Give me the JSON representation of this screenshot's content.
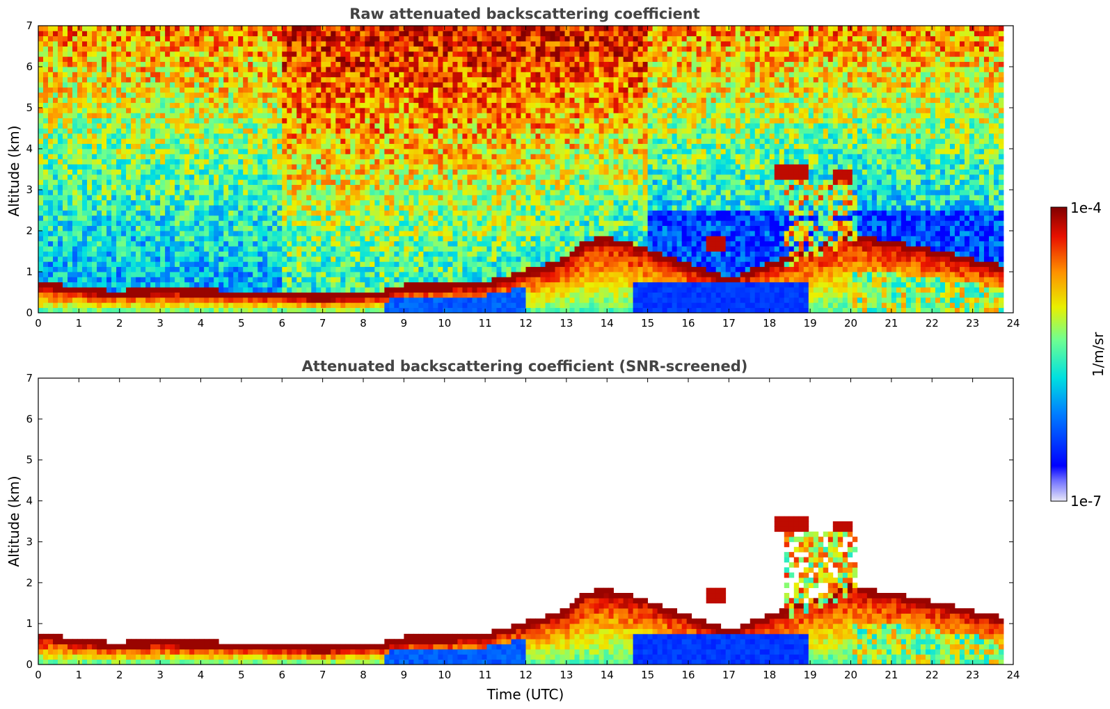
{
  "chart_data": [
    {
      "type": "heatmap",
      "title": "Raw attenuated backscattering coefficient",
      "xlabel": "",
      "ylabel": "Altitude (km)",
      "xlim": [
        0,
        24
      ],
      "ylim": [
        0,
        7
      ],
      "xticks": [
        "0",
        "1",
        "2",
        "3",
        "4",
        "5",
        "6",
        "7",
        "8",
        "9",
        "10",
        "11",
        "12",
        "13",
        "14",
        "15",
        "16",
        "17",
        "18",
        "19",
        "20",
        "21",
        "22",
        "23",
        "24"
      ],
      "yticks": [
        "0",
        "1",
        "2",
        "3",
        "4",
        "5",
        "6",
        "7"
      ],
      "layer_height_km": [
        [
          0,
          0.6
        ],
        [
          1.8,
          0.4
        ],
        [
          3,
          0.45
        ],
        [
          5,
          0.4
        ],
        [
          7,
          0.3
        ],
        [
          8.5,
          0.4
        ],
        [
          9,
          0.55
        ],
        [
          10,
          0.55
        ],
        [
          11,
          0.6
        ],
        [
          12,
          0.9
        ],
        [
          13,
          1.2
        ],
        [
          13.5,
          1.65
        ],
        [
          14,
          1.7
        ],
        [
          14.5,
          1.6
        ],
        [
          17,
          0.7
        ],
        [
          20,
          1.8
        ],
        [
          22,
          1.4
        ],
        [
          23.8,
          1.0
        ]
      ],
      "elevated_layers": [
        {
          "t_start": 18.1,
          "t_end": 18.9,
          "alt_km": 3.4
        },
        {
          "t_start": 19.6,
          "t_end": 20.0,
          "alt_km": 3.3
        },
        {
          "t_start": 16.5,
          "t_end": 16.9,
          "alt_km": 1.7
        }
      ],
      "grid": false
    },
    {
      "type": "heatmap",
      "title": "Attenuated backscattering coefficient (SNR-screened)",
      "xlabel": "Time (UTC)",
      "ylabel": "Altitude (km)",
      "xlim": [
        0,
        24
      ],
      "ylim": [
        0,
        7
      ],
      "xticks": [
        "0",
        "1",
        "2",
        "3",
        "4",
        "5",
        "6",
        "7",
        "8",
        "9",
        "10",
        "11",
        "12",
        "13",
        "14",
        "15",
        "16",
        "17",
        "18",
        "19",
        "20",
        "21",
        "22",
        "23",
        "24"
      ],
      "yticks": [
        "0",
        "1",
        "2",
        "3",
        "4",
        "5",
        "6",
        "7"
      ],
      "grid": false
    }
  ],
  "colorbar": {
    "label": "1/m/sr",
    "max_label": "1e-4",
    "min_label": "1e-7",
    "scale": "log",
    "range": [
      1e-07,
      0.0001
    ]
  }
}
